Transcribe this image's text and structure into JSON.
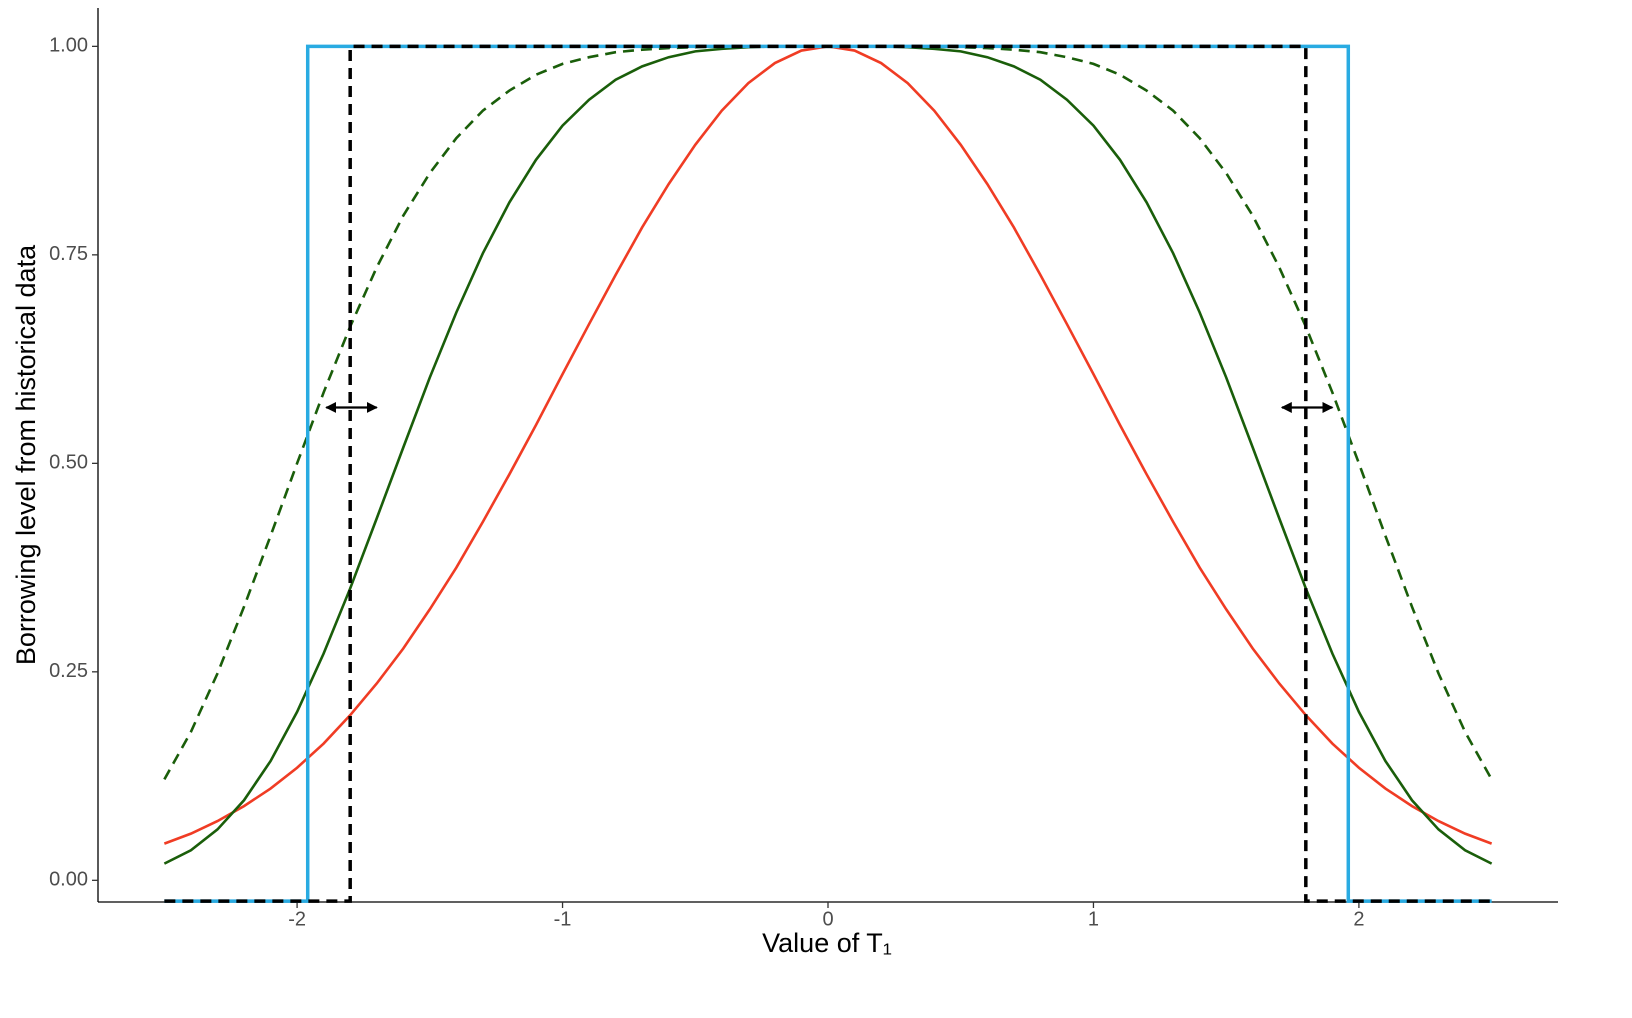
{
  "chart_data": {
    "type": "line",
    "xlabel": "Value of T₁",
    "ylabel": "Borrowing level from historical data",
    "xlim": [
      -2.75,
      2.75
    ],
    "xticks": [
      -2,
      -1,
      0,
      1,
      2
    ],
    "ylim": [
      -0.026,
      1.046
    ],
    "yticks": [
      {
        "value": 0,
        "label": "0.00"
      },
      {
        "value": 0.25,
        "label": "0.25"
      },
      {
        "value": 0.5,
        "label": "0.50"
      },
      {
        "value": 0.75,
        "label": "0.75"
      },
      {
        "value": 1,
        "label": "1.00"
      }
    ],
    "grid": false,
    "series": [
      {
        "color": "#f03c24",
        "dashed": false,
        "x": [
          -2.5,
          -2.4,
          -2.3,
          -2.2,
          -2.1,
          -2.0,
          -1.9,
          -1.8,
          -1.7,
          -1.6,
          -1.5,
          -1.4,
          -1.3,
          -1.2,
          -1.1,
          -1.0,
          -0.9,
          -0.8,
          -0.7,
          -0.6,
          -0.5,
          -0.4,
          -0.3,
          -0.2,
          -0.1,
          0,
          0.1,
          0.2,
          0.3,
          0.4,
          0.5,
          0.6,
          0.7,
          0.8,
          0.9,
          1.0,
          1.1,
          1.2,
          1.3,
          1.4,
          1.5,
          1.6,
          1.7,
          1.8,
          1.9,
          2.0,
          2.1,
          2.2,
          2.3,
          2.4,
          2.5
        ],
        "values": [
          0.044,
          0.056,
          0.071,
          0.089,
          0.11,
          0.135,
          0.164,
          0.198,
          0.236,
          0.278,
          0.325,
          0.375,
          0.43,
          0.487,
          0.546,
          0.607,
          0.667,
          0.726,
          0.783,
          0.835,
          0.882,
          0.923,
          0.956,
          0.98,
          0.995,
          1,
          0.995,
          0.98,
          0.956,
          0.923,
          0.882,
          0.835,
          0.783,
          0.726,
          0.667,
          0.607,
          0.546,
          0.487,
          0.43,
          0.375,
          0.325,
          0.278,
          0.236,
          0.198,
          0.164,
          0.135,
          0.11,
          0.089,
          0.071,
          0.056,
          0.044
        ]
      },
      {
        "color": "#1a5e0a",
        "dashed": false,
        "x": [
          -2.5,
          -2.4,
          -2.3,
          -2.2,
          -2.1,
          -2.0,
          -1.9,
          -1.8,
          -1.7,
          -1.6,
          -1.5,
          -1.4,
          -1.3,
          -1.2,
          -1.1,
          -1.0,
          -0.9,
          -0.8,
          -0.7,
          -0.6,
          -0.5,
          -0.4,
          -0.3,
          -0.2,
          -0.1,
          0,
          0.1,
          0.2,
          0.3,
          0.4,
          0.5,
          0.6,
          0.7,
          0.8,
          0.9,
          1.0,
          1.1,
          1.2,
          1.3,
          1.4,
          1.5,
          1.6,
          1.7,
          1.8,
          1.9,
          2.0,
          2.1,
          2.2,
          2.3,
          2.4,
          2.5
        ],
        "values": [
          0.02,
          0.036,
          0.061,
          0.096,
          0.143,
          0.202,
          0.272,
          0.35,
          0.434,
          0.519,
          0.603,
          0.681,
          0.752,
          0.813,
          0.864,
          0.905,
          0.936,
          0.96,
          0.976,
          0.987,
          0.994,
          0.997,
          0.999,
          1,
          1,
          1,
          1,
          1,
          0.999,
          0.997,
          0.994,
          0.987,
          0.976,
          0.96,
          0.936,
          0.905,
          0.864,
          0.813,
          0.752,
          0.681,
          0.603,
          0.519,
          0.434,
          0.35,
          0.272,
          0.202,
          0.143,
          0.096,
          0.061,
          0.036,
          0.02
        ]
      },
      {
        "color": "#1a5e0a",
        "dashed": true,
        "x": [
          -2.5,
          -2.4,
          -2.3,
          -2.2,
          -2.1,
          -2.0,
          -1.9,
          -1.8,
          -1.7,
          -1.6,
          -1.5,
          -1.4,
          -1.3,
          -1.2,
          -1.1,
          -1.0,
          -0.9,
          -0.8,
          -0.7,
          -0.6,
          -0.5,
          -0.4,
          -0.3,
          -0.2,
          -0.1,
          0,
          0.1,
          0.2,
          0.3,
          0.4,
          0.5,
          0.6,
          0.7,
          0.8,
          0.9,
          1.0,
          1.1,
          1.2,
          1.3,
          1.4,
          1.5,
          1.6,
          1.7,
          1.8,
          1.9,
          2.0,
          2.1,
          2.2,
          2.3,
          2.4,
          2.5
        ],
        "values": [
          0.121,
          0.178,
          0.248,
          0.328,
          0.413,
          0.5,
          0.585,
          0.664,
          0.735,
          0.797,
          0.848,
          0.89,
          0.923,
          0.947,
          0.966,
          0.979,
          0.987,
          0.993,
          0.996,
          0.998,
          0.999,
          1,
          1,
          1,
          1,
          1,
          1,
          1,
          1,
          1,
          0.999,
          0.998,
          0.996,
          0.993,
          0.987,
          0.979,
          0.966,
          0.947,
          0.923,
          0.89,
          0.848,
          0.797,
          0.735,
          0.664,
          0.585,
          0.5,
          0.413,
          0.328,
          0.248,
          0.178,
          0.121
        ]
      },
      {
        "color": "#29abe2",
        "dashed": false,
        "width": 3.5,
        "x": [
          -2.5,
          -1.96,
          -1.96,
          1.96,
          1.96,
          2.5
        ],
        "values": [
          -0.025,
          -0.025,
          1,
          1,
          -0.025,
          -0.025
        ]
      },
      {
        "color": "#000000",
        "dashed": true,
        "width": 3.5,
        "x": [
          -2.5,
          -1.8,
          -1.8,
          1.8,
          1.8,
          2.5
        ],
        "values": [
          -0.025,
          -0.025,
          1,
          1,
          -0.025,
          -0.025
        ]
      }
    ],
    "arrows": [
      {
        "x": [
          -1.89,
          -1.7
        ],
        "y": 0.567
      },
      {
        "x": [
          1.71,
          1.9
        ],
        "y": 0.567
      }
    ]
  }
}
